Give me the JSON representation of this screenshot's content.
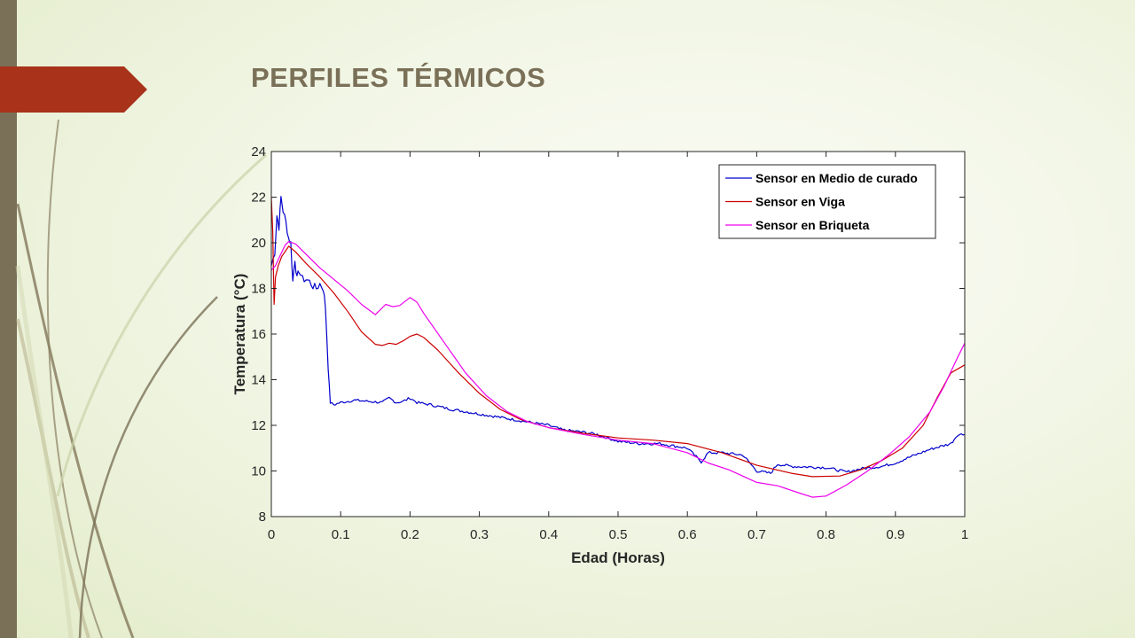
{
  "slide": {
    "title": "PERFILES TÉRMICOS",
    "accent_color": "#a8321a",
    "bar_color": "#7a7058"
  },
  "chart_data": {
    "type": "line",
    "title": "",
    "xlabel": "Edad (Horas)",
    "ylabel": "Temperatura (°C)",
    "xlim": [
      0,
      1
    ],
    "ylim": [
      8,
      24
    ],
    "xticks": [
      "0",
      "0.1",
      "0.2",
      "0.3",
      "0.4",
      "0.5",
      "0.6",
      "0.7",
      "0.8",
      "0.9",
      "1"
    ],
    "yticks": [
      "8",
      "10",
      "12",
      "14",
      "16",
      "18",
      "20",
      "22",
      "24"
    ],
    "grid": false,
    "legend_position": "top-right",
    "series": [
      {
        "name": "Sensor en Medio de curado",
        "color": "#0000cc",
        "noisy": true,
        "points": [
          [
            0,
            19.0
          ],
          [
            0.005,
            19.6
          ],
          [
            0.008,
            21.2
          ],
          [
            0.011,
            20.7
          ],
          [
            0.014,
            22.0
          ],
          [
            0.017,
            21.4
          ],
          [
            0.021,
            20.9
          ],
          [
            0.025,
            20.2
          ],
          [
            0.028,
            20.0
          ],
          [
            0.031,
            18.3
          ],
          [
            0.034,
            19.3
          ],
          [
            0.037,
            18.4
          ],
          [
            0.04,
            18.8
          ],
          [
            0.045,
            18.4
          ],
          [
            0.05,
            18.4
          ],
          [
            0.055,
            18.3
          ],
          [
            0.06,
            18.1
          ],
          [
            0.065,
            18.0
          ],
          [
            0.07,
            18.2
          ],
          [
            0.075,
            18.0
          ],
          [
            0.078,
            17.2
          ],
          [
            0.082,
            14.5
          ],
          [
            0.085,
            13.0
          ],
          [
            0.09,
            12.9
          ],
          [
            0.1,
            13.0
          ],
          [
            0.12,
            13.1
          ],
          [
            0.14,
            13.05
          ],
          [
            0.16,
            13.0
          ],
          [
            0.17,
            13.2
          ],
          [
            0.18,
            13.0
          ],
          [
            0.19,
            13.05
          ],
          [
            0.2,
            13.2
          ],
          [
            0.21,
            13.0
          ],
          [
            0.23,
            12.9
          ],
          [
            0.26,
            12.7
          ],
          [
            0.3,
            12.5
          ],
          [
            0.34,
            12.3
          ],
          [
            0.38,
            12.1
          ],
          [
            0.4,
            12.0
          ],
          [
            0.42,
            11.8
          ],
          [
            0.45,
            11.7
          ],
          [
            0.47,
            11.6
          ],
          [
            0.5,
            11.3
          ],
          [
            0.53,
            11.2
          ],
          [
            0.56,
            11.2
          ],
          [
            0.58,
            11.1
          ],
          [
            0.6,
            11.0
          ],
          [
            0.61,
            10.7
          ],
          [
            0.62,
            10.4
          ],
          [
            0.63,
            10.8
          ],
          [
            0.65,
            10.8
          ],
          [
            0.68,
            10.7
          ],
          [
            0.7,
            10.0
          ],
          [
            0.72,
            9.9
          ],
          [
            0.73,
            10.3
          ],
          [
            0.75,
            10.2
          ],
          [
            0.8,
            10.15
          ],
          [
            0.83,
            9.95
          ],
          [
            0.85,
            10.1
          ],
          [
            0.88,
            10.2
          ],
          [
            0.9,
            10.35
          ],
          [
            0.92,
            10.6
          ],
          [
            0.95,
            10.95
          ],
          [
            0.98,
            11.2
          ],
          [
            0.99,
            11.6
          ],
          [
            1.0,
            11.6
          ]
        ]
      },
      {
        "name": "Sensor en Viga",
        "color": "#cc0000",
        "noisy": false,
        "points": [
          [
            0,
            22.0
          ],
          [
            0.002,
            20.5
          ],
          [
            0.004,
            17.3
          ],
          [
            0.006,
            18.5
          ],
          [
            0.01,
            19.0
          ],
          [
            0.015,
            19.4
          ],
          [
            0.025,
            19.85
          ],
          [
            0.035,
            19.6
          ],
          [
            0.05,
            19.1
          ],
          [
            0.07,
            18.5
          ],
          [
            0.09,
            17.8
          ],
          [
            0.11,
            17.0
          ],
          [
            0.13,
            16.1
          ],
          [
            0.15,
            15.55
          ],
          [
            0.16,
            15.5
          ],
          [
            0.17,
            15.6
          ],
          [
            0.18,
            15.55
          ],
          [
            0.19,
            15.7
          ],
          [
            0.2,
            15.9
          ],
          [
            0.21,
            16.0
          ],
          [
            0.22,
            15.85
          ],
          [
            0.24,
            15.3
          ],
          [
            0.27,
            14.3
          ],
          [
            0.3,
            13.4
          ],
          [
            0.33,
            12.7
          ],
          [
            0.36,
            12.25
          ],
          [
            0.4,
            11.9
          ],
          [
            0.45,
            11.65
          ],
          [
            0.5,
            11.45
          ],
          [
            0.55,
            11.35
          ],
          [
            0.6,
            11.2
          ],
          [
            0.65,
            10.8
          ],
          [
            0.7,
            10.25
          ],
          [
            0.75,
            9.9
          ],
          [
            0.78,
            9.75
          ],
          [
            0.82,
            9.78
          ],
          [
            0.85,
            10.05
          ],
          [
            0.88,
            10.45
          ],
          [
            0.91,
            11.0
          ],
          [
            0.94,
            12.0
          ],
          [
            0.96,
            13.2
          ],
          [
            0.98,
            14.3
          ],
          [
            1.0,
            14.65
          ]
        ]
      },
      {
        "name": "Sensor en Briqueta",
        "color": "#ee00ee",
        "noisy": false,
        "points": [
          [
            0,
            18.8
          ],
          [
            0.006,
            19.0
          ],
          [
            0.012,
            19.4
          ],
          [
            0.02,
            19.9
          ],
          [
            0.025,
            20.05
          ],
          [
            0.035,
            19.95
          ],
          [
            0.05,
            19.5
          ],
          [
            0.07,
            18.9
          ],
          [
            0.09,
            18.4
          ],
          [
            0.11,
            17.9
          ],
          [
            0.13,
            17.3
          ],
          [
            0.15,
            16.85
          ],
          [
            0.165,
            17.3
          ],
          [
            0.175,
            17.2
          ],
          [
            0.185,
            17.25
          ],
          [
            0.2,
            17.6
          ],
          [
            0.21,
            17.4
          ],
          [
            0.22,
            16.9
          ],
          [
            0.25,
            15.6
          ],
          [
            0.28,
            14.3
          ],
          [
            0.31,
            13.3
          ],
          [
            0.34,
            12.6
          ],
          [
            0.37,
            12.15
          ],
          [
            0.4,
            11.9
          ],
          [
            0.45,
            11.6
          ],
          [
            0.5,
            11.35
          ],
          [
            0.55,
            11.2
          ],
          [
            0.6,
            10.8
          ],
          [
            0.63,
            10.35
          ],
          [
            0.66,
            10.05
          ],
          [
            0.7,
            9.5
          ],
          [
            0.73,
            9.35
          ],
          [
            0.76,
            9.05
          ],
          [
            0.78,
            8.85
          ],
          [
            0.8,
            8.9
          ],
          [
            0.83,
            9.4
          ],
          [
            0.86,
            10.0
          ],
          [
            0.89,
            10.7
          ],
          [
            0.92,
            11.5
          ],
          [
            0.95,
            12.6
          ],
          [
            0.97,
            13.7
          ],
          [
            0.99,
            15.0
          ],
          [
            1.0,
            15.6
          ]
        ]
      }
    ]
  }
}
